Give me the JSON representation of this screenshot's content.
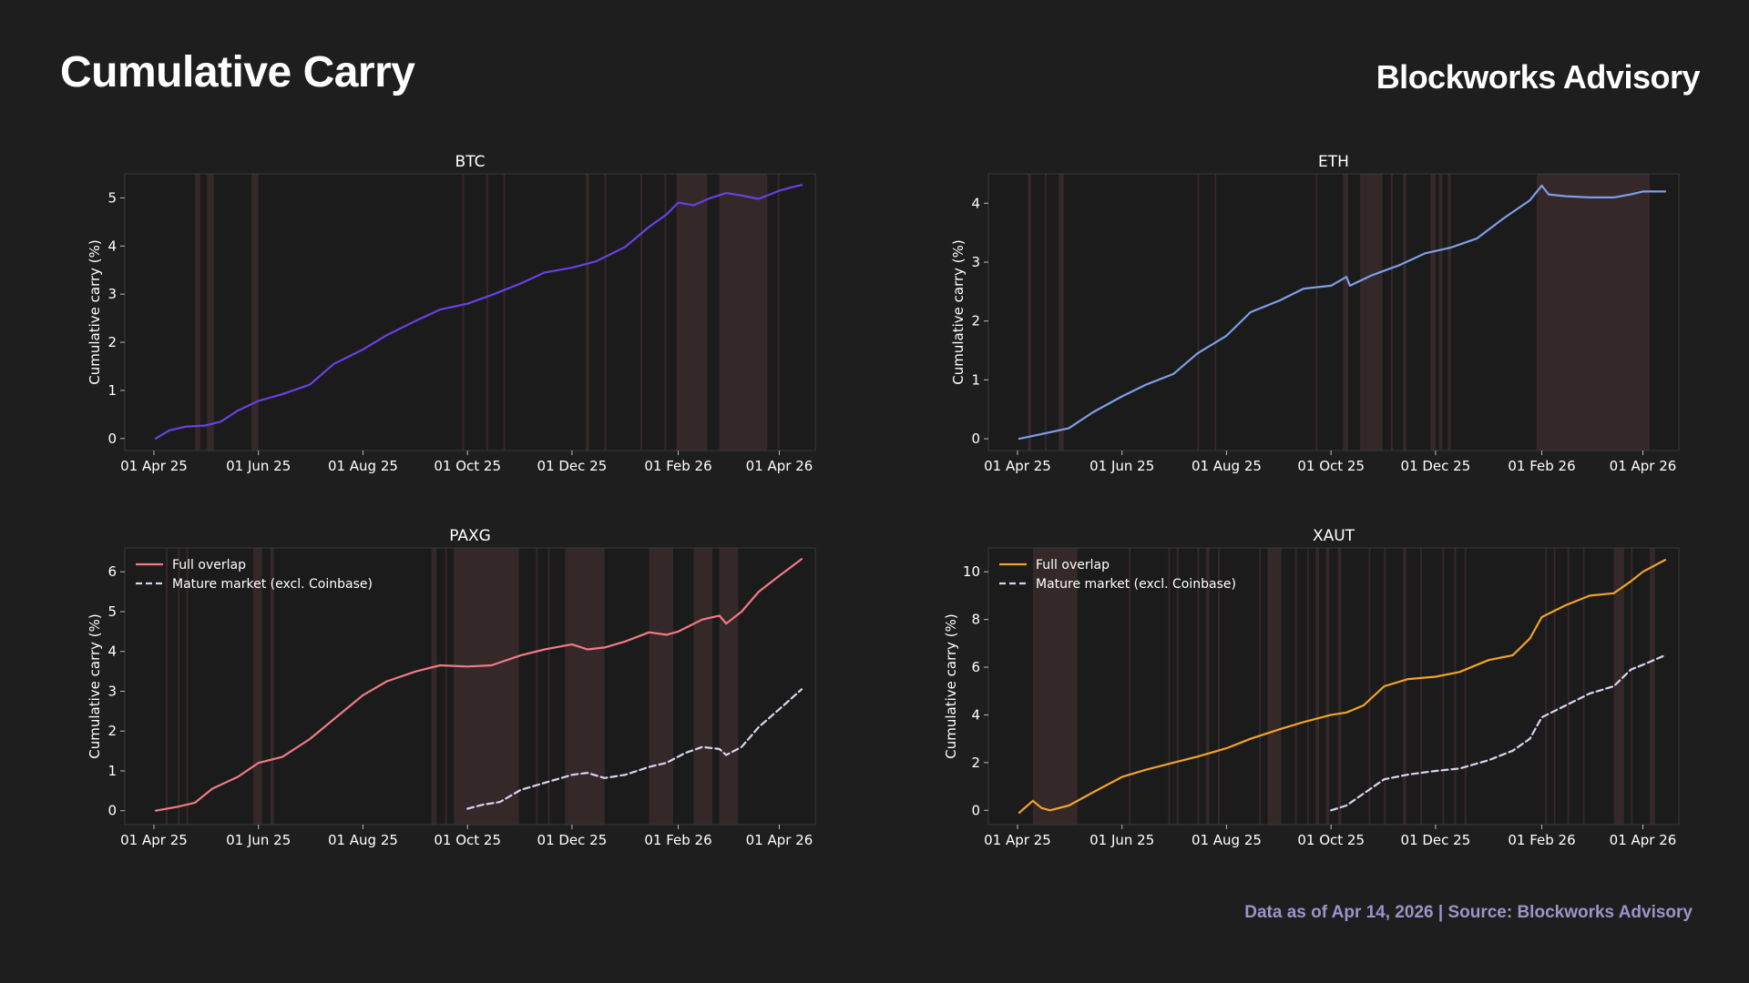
{
  "header": {
    "title": "Cumulative Carry",
    "brand": "Blockworks Advisory"
  },
  "footer": {
    "note": "Data as of Apr 14, 2026 | Source: Blockworks Advisory"
  },
  "colors": {
    "background": "#1e1e1e",
    "plot_background": "#1b1b1b",
    "highlight_band": "#3a2a2c",
    "btc": "#6a40e6",
    "eth": "#7e9fe8",
    "paxg": "#f07a86",
    "xaut": "#f2a22a",
    "mature": "#d8d4ee"
  },
  "chart_data": [
    {
      "id": "btc",
      "type": "line",
      "title": "BTC",
      "xlabel": "",
      "ylabel": "Cumulative carry (%)",
      "x_ticks": [
        "01 Apr 25",
        "01 Jun 25",
        "01 Aug 25",
        "01 Oct 25",
        "01 Dec 25",
        "01 Feb 26",
        "01 Apr 26"
      ],
      "x_range": [
        "2025-03-15",
        "2026-04-22"
      ],
      "ylim": [
        -0.25,
        5.5
      ],
      "y_ticks": [
        0,
        1,
        2,
        3,
        4,
        5
      ],
      "grid": false,
      "legend": null,
      "highlight_bands": [
        [
          "2025-04-25",
          "2025-04-28"
        ],
        [
          "2025-05-02",
          "2025-05-06"
        ],
        [
          "2025-05-28",
          "2025-06-01"
        ],
        [
          "2025-09-28",
          "2025-09-29"
        ],
        [
          "2025-10-12",
          "2025-10-13"
        ],
        [
          "2025-10-22",
          "2025-10-23"
        ],
        [
          "2025-12-09",
          "2025-12-11"
        ],
        [
          "2025-12-20",
          "2025-12-21"
        ],
        [
          "2026-01-10",
          "2026-01-11"
        ],
        [
          "2026-01-24",
          "2026-01-25"
        ],
        [
          "2026-01-31",
          "2026-02-18"
        ],
        [
          "2026-02-25",
          "2026-03-25"
        ],
        [
          "2026-03-31",
          "2026-04-01"
        ]
      ],
      "series": [
        {
          "color": "#6a40e6",
          "dashed": false,
          "x": [
            "2025-04-02",
            "2025-04-10",
            "2025-04-20",
            "2025-05-01",
            "2025-05-10",
            "2025-05-20",
            "2025-06-01",
            "2025-06-15",
            "2025-07-01",
            "2025-07-15",
            "2025-08-01",
            "2025-08-15",
            "2025-09-01",
            "2025-09-15",
            "2025-10-01",
            "2025-10-15",
            "2025-11-01",
            "2025-11-15",
            "2025-12-01",
            "2025-12-15",
            "2026-01-01",
            "2026-01-15",
            "2026-01-25",
            "2026-02-01",
            "2026-02-10",
            "2026-02-20",
            "2026-03-01",
            "2026-03-10",
            "2026-03-20",
            "2026-04-01",
            "2026-04-08",
            "2026-04-14"
          ],
          "y": [
            0.0,
            0.17,
            0.25,
            0.27,
            0.35,
            0.58,
            0.78,
            0.92,
            1.12,
            1.55,
            1.85,
            2.15,
            2.45,
            2.68,
            2.8,
            2.98,
            3.22,
            3.45,
            3.55,
            3.68,
            3.98,
            4.4,
            4.65,
            4.9,
            4.85,
            5.0,
            5.1,
            5.05,
            4.98,
            5.15,
            5.22,
            5.27
          ]
        }
      ]
    },
    {
      "id": "eth",
      "type": "line",
      "title": "ETH",
      "xlabel": "",
      "ylabel": "Cumulative carry (%)",
      "x_ticks": [
        "01 Apr 25",
        "01 Jun 25",
        "01 Aug 25",
        "01 Oct 25",
        "01 Dec 25",
        "01 Feb 26",
        "01 Apr 26"
      ],
      "x_range": [
        "2025-03-15",
        "2026-04-22"
      ],
      "ylim": [
        -0.2,
        4.5
      ],
      "y_ticks": [
        0,
        1,
        2,
        3,
        4
      ],
      "grid": false,
      "legend": null,
      "highlight_bands": [
        [
          "2025-04-07",
          "2025-04-09"
        ],
        [
          "2025-04-17",
          "2025-04-18"
        ],
        [
          "2025-04-25",
          "2025-04-28"
        ],
        [
          "2025-07-15",
          "2025-07-16"
        ],
        [
          "2025-07-25",
          "2025-07-26"
        ],
        [
          "2025-09-22",
          "2025-09-23"
        ],
        [
          "2025-10-08",
          "2025-10-11"
        ],
        [
          "2025-10-18",
          "2025-10-31"
        ],
        [
          "2025-11-05",
          "2025-11-06"
        ],
        [
          "2025-11-12",
          "2025-11-14"
        ],
        [
          "2025-11-28",
          "2025-12-01"
        ],
        [
          "2025-12-03",
          "2025-12-05"
        ],
        [
          "2025-12-08",
          "2025-12-10"
        ],
        [
          "2026-01-29",
          "2026-04-05"
        ]
      ],
      "series": [
        {
          "color": "#7e9fe8",
          "dashed": false,
          "x": [
            "2025-04-02",
            "2025-04-15",
            "2025-05-01",
            "2025-05-15",
            "2025-06-01",
            "2025-06-15",
            "2025-07-01",
            "2025-07-15",
            "2025-08-01",
            "2025-08-15",
            "2025-09-01",
            "2025-09-15",
            "2025-10-01",
            "2025-10-10",
            "2025-10-12",
            "2025-10-25",
            "2025-11-10",
            "2025-11-25",
            "2025-12-10",
            "2025-12-25",
            "2026-01-10",
            "2026-01-25",
            "2026-02-01",
            "2026-02-05",
            "2026-02-15",
            "2026-03-01",
            "2026-03-15",
            "2026-03-25",
            "2026-04-01",
            "2026-04-14"
          ],
          "y": [
            0.0,
            0.08,
            0.18,
            0.45,
            0.72,
            0.92,
            1.1,
            1.45,
            1.75,
            2.15,
            2.35,
            2.55,
            2.6,
            2.75,
            2.6,
            2.78,
            2.95,
            3.15,
            3.25,
            3.4,
            3.75,
            4.05,
            4.3,
            4.15,
            4.12,
            4.1,
            4.1,
            4.15,
            4.2,
            4.2
          ]
        }
      ]
    },
    {
      "id": "paxg",
      "type": "line",
      "title": "PAXG",
      "xlabel": "",
      "ylabel": "Cumulative carry (%)",
      "x_ticks": [
        "01 Apr 25",
        "01 Jun 25",
        "01 Aug 25",
        "01 Oct 25",
        "01 Dec 25",
        "01 Feb 26",
        "01 Apr 26"
      ],
      "x_range": [
        "2025-03-15",
        "2026-04-22"
      ],
      "ylim": [
        -0.35,
        6.6
      ],
      "y_ticks": [
        0,
        1,
        2,
        3,
        4,
        5,
        6
      ],
      "grid": false,
      "legend": "top-left",
      "highlight_bands": [
        [
          "2025-04-08",
          "2025-04-09"
        ],
        [
          "2025-04-15",
          "2025-04-16"
        ],
        [
          "2025-04-20",
          "2025-04-21"
        ],
        [
          "2025-05-29",
          "2025-06-03"
        ],
        [
          "2025-06-08",
          "2025-06-10"
        ],
        [
          "2025-09-10",
          "2025-09-13"
        ],
        [
          "2025-09-18",
          "2025-09-19"
        ],
        [
          "2025-09-23",
          "2025-10-31"
        ],
        [
          "2025-11-10",
          "2025-11-11"
        ],
        [
          "2025-11-17",
          "2025-11-18"
        ],
        [
          "2025-11-27",
          "2025-12-20"
        ],
        [
          "2026-01-15",
          "2026-01-29"
        ],
        [
          "2026-02-10",
          "2026-02-21"
        ],
        [
          "2026-02-25",
          "2026-03-08"
        ]
      ],
      "series": [
        {
          "name": "Full overlap",
          "color": "#f07a86",
          "dashed": false,
          "x": [
            "2025-04-02",
            "2025-04-15",
            "2025-04-25",
            "2025-05-05",
            "2025-05-20",
            "2025-06-01",
            "2025-06-15",
            "2025-07-01",
            "2025-07-15",
            "2025-08-01",
            "2025-08-15",
            "2025-09-01",
            "2025-09-15",
            "2025-10-01",
            "2025-10-15",
            "2025-11-01",
            "2025-11-15",
            "2025-12-01",
            "2025-12-10",
            "2025-12-20",
            "2026-01-01",
            "2026-01-15",
            "2026-01-25",
            "2026-02-01",
            "2026-02-15",
            "2026-02-25",
            "2026-03-01",
            "2026-03-10",
            "2026-03-20",
            "2026-04-01",
            "2026-04-14"
          ],
          "y": [
            0.0,
            0.1,
            0.2,
            0.55,
            0.85,
            1.2,
            1.35,
            1.8,
            2.3,
            2.9,
            3.25,
            3.5,
            3.65,
            3.62,
            3.65,
            3.9,
            4.05,
            4.18,
            4.05,
            4.1,
            4.25,
            4.48,
            4.42,
            4.5,
            4.8,
            4.9,
            4.7,
            5.0,
            5.5,
            5.9,
            6.32
          ]
        },
        {
          "name": "Mature market (excl. Coinbase)",
          "color": "#d8d4ee",
          "dashed": true,
          "x": [
            "2025-10-01",
            "2025-10-10",
            "2025-10-20",
            "2025-11-01",
            "2025-11-15",
            "2025-12-01",
            "2025-12-10",
            "2025-12-20",
            "2026-01-01",
            "2026-01-15",
            "2026-01-25",
            "2026-02-05",
            "2026-02-15",
            "2026-02-25",
            "2026-03-01",
            "2026-03-10",
            "2026-03-20",
            "2026-04-01",
            "2026-04-14"
          ],
          "y": [
            0.05,
            0.15,
            0.22,
            0.52,
            0.7,
            0.9,
            0.95,
            0.82,
            0.9,
            1.1,
            1.2,
            1.45,
            1.6,
            1.55,
            1.4,
            1.6,
            2.1,
            2.55,
            3.05
          ]
        }
      ]
    },
    {
      "id": "xaut",
      "type": "line",
      "title": "XAUT",
      "xlabel": "",
      "ylabel": "Cumulative carry (%)",
      "x_ticks": [
        "01 Apr 25",
        "01 Jun 25",
        "01 Aug 25",
        "01 Oct 25",
        "01 Dec 25",
        "01 Feb 26",
        "01 Apr 26"
      ],
      "x_range": [
        "2025-03-15",
        "2026-04-22"
      ],
      "ylim": [
        -0.6,
        11.0
      ],
      "y_ticks": [
        0,
        2,
        4,
        6,
        8,
        10
      ],
      "grid": false,
      "legend": "top-left",
      "highlight_bands": [
        [
          "2025-04-10",
          "2025-05-06"
        ],
        [
          "2025-06-05",
          "2025-06-06"
        ],
        [
          "2025-06-28",
          "2025-06-29"
        ],
        [
          "2025-07-03",
          "2025-07-04"
        ],
        [
          "2025-07-15",
          "2025-07-16"
        ],
        [
          "2025-07-20",
          "2025-07-22"
        ],
        [
          "2025-07-27",
          "2025-07-28"
        ],
        [
          "2025-08-20",
          "2025-08-21"
        ],
        [
          "2025-08-25",
          "2025-09-02"
        ],
        [
          "2025-09-10",
          "2025-09-11"
        ],
        [
          "2025-09-17",
          "2025-09-18"
        ],
        [
          "2025-09-22",
          "2025-09-24"
        ],
        [
          "2025-09-28",
          "2025-09-30"
        ],
        [
          "2025-10-05",
          "2025-10-07"
        ],
        [
          "2025-10-23",
          "2025-10-24"
        ],
        [
          "2025-11-01",
          "2025-11-02"
        ],
        [
          "2025-11-12",
          "2025-11-14"
        ],
        [
          "2025-11-22",
          "2025-11-23"
        ],
        [
          "2025-12-05",
          "2025-12-06"
        ],
        [
          "2025-12-12",
          "2025-12-13"
        ],
        [
          "2025-12-18",
          "2025-12-19"
        ],
        [
          "2026-02-03",
          "2026-02-04"
        ],
        [
          "2026-02-08",
          "2026-02-09"
        ],
        [
          "2026-02-16",
          "2026-02-17"
        ],
        [
          "2026-02-25",
          "2026-02-26"
        ],
        [
          "2026-03-15",
          "2026-03-21"
        ],
        [
          "2026-03-25",
          "2026-03-26"
        ],
        [
          "2026-04-05",
          "2026-04-08"
        ]
      ],
      "series": [
        {
          "name": "Full overlap",
          "color": "#f2a22a",
          "dashed": false,
          "x": [
            "2025-04-02",
            "2025-04-10",
            "2025-04-15",
            "2025-04-20",
            "2025-05-01",
            "2025-05-15",
            "2025-06-01",
            "2025-06-15",
            "2025-07-01",
            "2025-07-15",
            "2025-08-01",
            "2025-08-15",
            "2025-09-01",
            "2025-09-15",
            "2025-10-01",
            "2025-10-10",
            "2025-10-20",
            "2025-11-01",
            "2025-11-15",
            "2025-12-01",
            "2025-12-15",
            "2026-01-01",
            "2026-01-15",
            "2026-01-25",
            "2026-02-01",
            "2026-02-15",
            "2026-03-01",
            "2026-03-15",
            "2026-03-25",
            "2026-04-01",
            "2026-04-14"
          ],
          "y": [
            -0.1,
            0.4,
            0.1,
            0.0,
            0.2,
            0.75,
            1.4,
            1.7,
            2.0,
            2.25,
            2.6,
            3.0,
            3.4,
            3.7,
            4.0,
            4.1,
            4.4,
            5.2,
            5.5,
            5.6,
            5.8,
            6.3,
            6.5,
            7.2,
            8.1,
            8.6,
            9.0,
            9.1,
            9.6,
            10.0,
            10.5
          ]
        },
        {
          "name": "Mature market (excl. Coinbase)",
          "color": "#d8d4ee",
          "dashed": true,
          "x": [
            "2025-10-01",
            "2025-10-10",
            "2025-10-20",
            "2025-11-01",
            "2025-11-15",
            "2025-12-01",
            "2025-12-15",
            "2026-01-01",
            "2026-01-15",
            "2026-01-25",
            "2026-02-01",
            "2026-02-15",
            "2026-03-01",
            "2026-03-15",
            "2026-03-25",
            "2026-04-01",
            "2026-04-14"
          ],
          "y": [
            0.0,
            0.2,
            0.7,
            1.3,
            1.5,
            1.65,
            1.75,
            2.1,
            2.5,
            3.0,
            3.9,
            4.4,
            4.9,
            5.2,
            5.9,
            6.1,
            6.5
          ]
        }
      ]
    }
  ]
}
